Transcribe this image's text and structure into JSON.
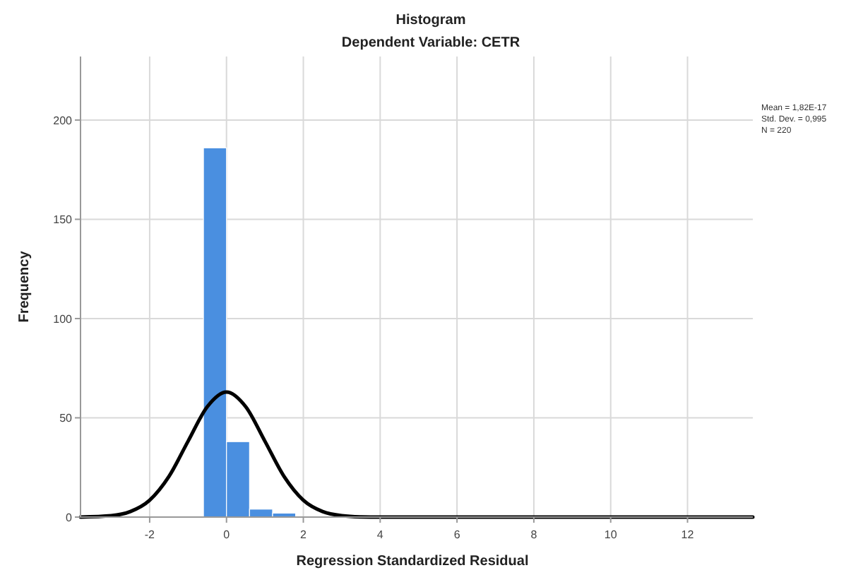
{
  "chart_data": {
    "type": "histogram",
    "title": "Histogram",
    "subtitle": "Dependent Variable: CETR",
    "xlabel": "Regression Standardized Residual",
    "ylabel": "Frequency",
    "bins": [
      -0.6,
      0,
      0.6,
      1.2,
      1.8
    ],
    "values": [
      186,
      38,
      4,
      2
    ],
    "color": "#4a8fe0",
    "series": [
      {
        "type": "line",
        "color": "#000000",
        "x": [
          -3.8,
          -3,
          -2.5,
          -2,
          -1.5,
          -1,
          -0.5,
          0,
          0.5,
          1,
          1.5,
          2,
          2.5,
          3,
          3.5,
          4,
          13.7
        ],
        "values": [
          0,
          0.7,
          2.8,
          8.5,
          20.4,
          38.2,
          55.6,
          63,
          55.6,
          38.2,
          20.4,
          8.5,
          2.8,
          0.7,
          0.1,
          0,
          0
        ]
      }
    ],
    "xlim": [
      -3.8,
      13.7
    ],
    "xticks": [
      -2,
      0,
      2,
      4,
      6,
      8,
      10,
      12
    ],
    "ylim": [
      0,
      232
    ],
    "yticks": [
      0,
      50,
      100,
      150,
      200
    ],
    "grid": true,
    "annotations": [
      "Mean = 1,82E-17",
      "Std. Dev. = 0,995",
      "N = 220"
    ]
  }
}
